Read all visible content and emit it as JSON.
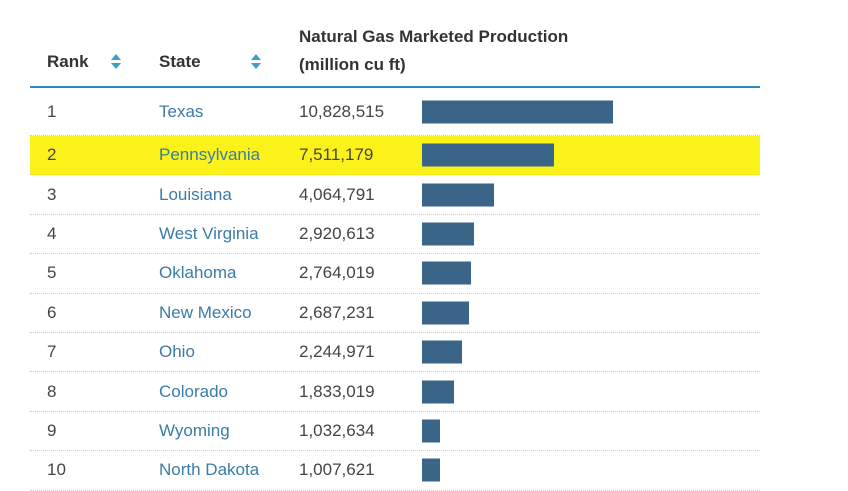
{
  "table": {
    "headers": {
      "rank": "Rank",
      "state": "State",
      "production_line1": "Natural Gas Marketed Production",
      "production_line2": "(million cu ft)"
    },
    "accent_color": "#2e86c1",
    "bar_color": "#3a6589",
    "highlight_color": "#fbf21a",
    "rows": [
      {
        "rank": "1",
        "state": "Texas",
        "production": "10,828,515",
        "value": 10828515,
        "highlighted": false
      },
      {
        "rank": "2",
        "state": "Pennsylvania",
        "production": "7,511,179",
        "value": 7511179,
        "highlighted": true
      },
      {
        "rank": "3",
        "state": "Louisiana",
        "production": "4,064,791",
        "value": 4064791,
        "highlighted": false
      },
      {
        "rank": "4",
        "state": "West Virginia",
        "production": "2,920,613",
        "value": 2920613,
        "highlighted": false
      },
      {
        "rank": "5",
        "state": "Oklahoma",
        "production": "2,764,019",
        "value": 2764019,
        "highlighted": false
      },
      {
        "rank": "6",
        "state": "New Mexico",
        "production": "2,687,231",
        "value": 2687231,
        "highlighted": false
      },
      {
        "rank": "7",
        "state": "Ohio",
        "production": "2,244,971",
        "value": 2244971,
        "highlighted": false
      },
      {
        "rank": "8",
        "state": "Colorado",
        "production": "1,833,019",
        "value": 1833019,
        "highlighted": false
      },
      {
        "rank": "9",
        "state": "Wyoming",
        "production": "1,032,634",
        "value": 1032634,
        "highlighted": false
      },
      {
        "rank": "10",
        "state": "North Dakota",
        "production": "1,007,621",
        "value": 1007621,
        "highlighted": false
      }
    ]
  }
}
